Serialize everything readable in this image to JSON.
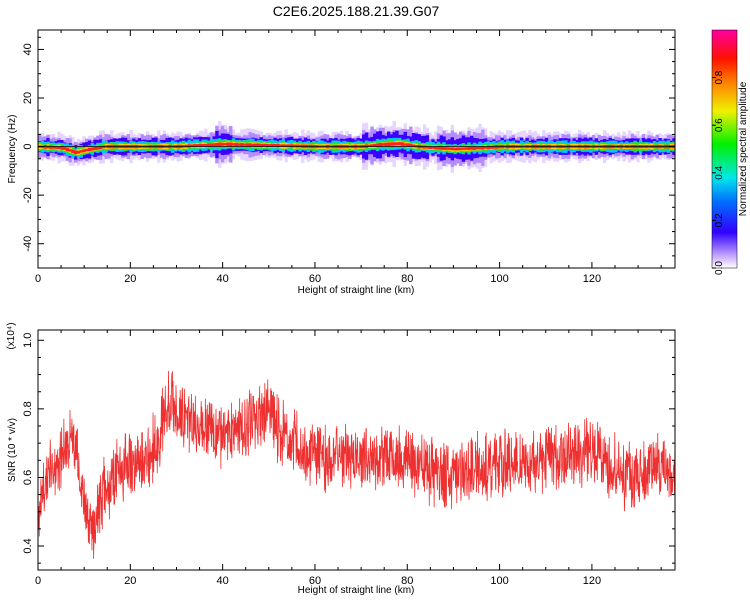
{
  "title": "C2E6.2025.188.21.39.G07",
  "chart_data": [
    {
      "type": "heatmap",
      "xlabel": "Height of straight line (km)",
      "ylabel": "Frequency (Hz)",
      "xlim": [
        0,
        138
      ],
      "ylim": [
        -50,
        48
      ],
      "x_ticks": [
        0,
        20,
        40,
        60,
        80,
        100,
        120
      ],
      "y_ticks": [
        -40,
        -20,
        0,
        20,
        40
      ],
      "colorbar": {
        "label": "Normalized spectral amplitude",
        "range": [
          0,
          1
        ],
        "ticks": [
          "0.0",
          "0.2",
          "0.4",
          "0.6",
          "0.8"
        ]
      },
      "ridge": {
        "description_free": true,
        "center_freq_points": [
          [
            0,
            0
          ],
          [
            5,
            -0.5
          ],
          [
            8,
            -2.5
          ],
          [
            10,
            -1.5
          ],
          [
            14,
            0
          ],
          [
            20,
            0
          ],
          [
            30,
            0
          ],
          [
            40,
            1
          ],
          [
            60,
            0
          ],
          [
            70,
            0
          ],
          [
            74,
            0.8
          ],
          [
            78,
            1.2
          ],
          [
            82,
            0
          ],
          [
            90,
            -1
          ],
          [
            96,
            -0.5
          ],
          [
            100,
            0
          ],
          [
            120,
            0
          ],
          [
            138,
            0
          ]
        ]
      }
    },
    {
      "type": "line",
      "xlabel": "Height of straight line (km)",
      "ylabel": "SNR (10 * v/v)",
      "scale_label": "(x10⁴)",
      "xlim": [
        0,
        138
      ],
      "ylim": [
        0.33,
        1.03
      ],
      "x_ticks": [
        0,
        20,
        40,
        60,
        80,
        100,
        120
      ],
      "y_ticks": [
        "0.4",
        "0.6",
        "0.8",
        "1.0"
      ],
      "series": [
        {
          "color": "#ee3030",
          "trend": [
            [
              0,
              0.5
            ],
            [
              2,
              0.6
            ],
            [
              5,
              0.66
            ],
            [
              8,
              0.72
            ],
            [
              10,
              0.5
            ],
            [
              12,
              0.45
            ],
            [
              14,
              0.55
            ],
            [
              18,
              0.62
            ],
            [
              22,
              0.64
            ],
            [
              26,
              0.7
            ],
            [
              28,
              0.82
            ],
            [
              30,
              0.8
            ],
            [
              33,
              0.74
            ],
            [
              36,
              0.76
            ],
            [
              40,
              0.72
            ],
            [
              44,
              0.74
            ],
            [
              48,
              0.78
            ],
            [
              50,
              0.82
            ],
            [
              52,
              0.74
            ],
            [
              55,
              0.7
            ],
            [
              60,
              0.66
            ],
            [
              65,
              0.66
            ],
            [
              70,
              0.65
            ],
            [
              75,
              0.66
            ],
            [
              80,
              0.65
            ],
            [
              85,
              0.62
            ],
            [
              90,
              0.6
            ],
            [
              95,
              0.63
            ],
            [
              100,
              0.64
            ],
            [
              105,
              0.64
            ],
            [
              110,
              0.66
            ],
            [
              115,
              0.67
            ],
            [
              120,
              0.68
            ],
            [
              124,
              0.64
            ],
            [
              128,
              0.6
            ],
            [
              132,
              0.62
            ],
            [
              136,
              0.63
            ],
            [
              138,
              0.58
            ]
          ]
        }
      ]
    }
  ]
}
